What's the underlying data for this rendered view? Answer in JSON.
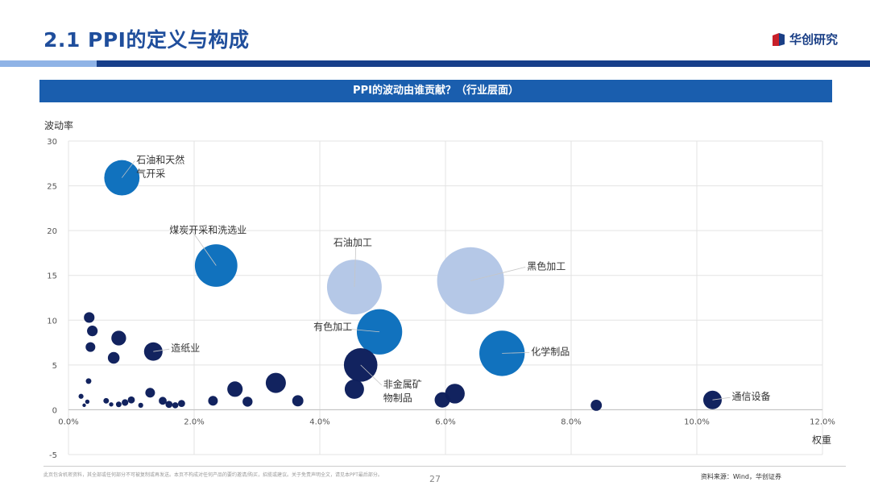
{
  "header": {
    "title": "2.1 PPI的定义与构成",
    "logo_text": "华创研究"
  },
  "banner": {
    "text": "PPI的波动由谁贡献？（行业层面）"
  },
  "chart_data": {
    "type": "scatter",
    "title": "",
    "xlabel": "权重",
    "ylabel": "波动率",
    "xlim": [
      0,
      12
    ],
    "ylim": [
      -5,
      30
    ],
    "x_ticks": [
      "0.0%",
      "2.0%",
      "4.0%",
      "6.0%",
      "8.0%",
      "10.0%",
      "12.0%"
    ],
    "y_ticks": [
      "-5",
      "0",
      "5",
      "10",
      "15",
      "20",
      "25",
      "30"
    ],
    "x_tick_values": [
      0,
      2,
      4,
      6,
      8,
      10,
      12
    ],
    "y_tick_values": [
      -5,
      0,
      5,
      10,
      15,
      20,
      25,
      30
    ],
    "grid": true,
    "colors": {
      "light": "#b4c7e7",
      "mid": "#0c6fbd",
      "dark": "#0d1f5c"
    },
    "points": [
      {
        "x": 0.85,
        "y": 25.9,
        "size": 2.0,
        "color": "mid",
        "label": "石油和天然\n气开采",
        "label_dx": 18,
        "label_dy": -18
      },
      {
        "x": 2.35,
        "y": 16.1,
        "size": 2.9,
        "color": "mid",
        "label": "煤炭开采和洗选业",
        "label_dx": -58,
        "label_dy": -40
      },
      {
        "x": 4.55,
        "y": 13.7,
        "size": 4.8,
        "color": "light",
        "label": "石油加工",
        "label_dx": -26,
        "label_dy": -51
      },
      {
        "x": 6.4,
        "y": 14.4,
        "size": 7.2,
        "color": "light",
        "label": "黑色加工",
        "label_dx": 70,
        "label_dy": -14
      },
      {
        "x": 4.95,
        "y": 8.7,
        "size": 3.3,
        "color": "mid",
        "label": "有色加工",
        "label_dx": -82,
        "label_dy": -2
      },
      {
        "x": 6.9,
        "y": 6.3,
        "size": 3.3,
        "color": "mid",
        "label": "化学制品",
        "label_dx": 36,
        "label_dy": 2
      },
      {
        "x": 4.65,
        "y": 5.0,
        "size": 1.8,
        "color": "dark",
        "label": "非金属矿\n物制品",
        "label_dx": 28,
        "label_dy": 28
      },
      {
        "x": 1.35,
        "y": 6.5,
        "size": 0.55,
        "color": "dark",
        "label": "造纸业",
        "label_dx": 22,
        "label_dy": 0
      },
      {
        "x": 10.25,
        "y": 1.1,
        "size": 0.55,
        "color": "dark",
        "label": "通信设备",
        "label_dx": 24,
        "label_dy": 0
      },
      {
        "x": 0.33,
        "y": 10.3,
        "size": 0.18,
        "color": "dark"
      },
      {
        "x": 0.38,
        "y": 8.8,
        "size": 0.18,
        "color": "dark"
      },
      {
        "x": 0.35,
        "y": 7.0,
        "size": 0.15,
        "color": "dark"
      },
      {
        "x": 0.8,
        "y": 8.0,
        "size": 0.35,
        "color": "dark"
      },
      {
        "x": 0.72,
        "y": 5.8,
        "size": 0.22,
        "color": "dark"
      },
      {
        "x": 0.32,
        "y": 3.2,
        "size": 0.05,
        "color": "dark"
      },
      {
        "x": 0.2,
        "y": 1.5,
        "size": 0.04,
        "color": "dark"
      },
      {
        "x": 0.3,
        "y": 0.9,
        "size": 0.03,
        "color": "dark"
      },
      {
        "x": 0.25,
        "y": 0.5,
        "size": 0.02,
        "color": "dark"
      },
      {
        "x": 0.6,
        "y": 1.0,
        "size": 0.05,
        "color": "dark"
      },
      {
        "x": 0.68,
        "y": 0.6,
        "size": 0.03,
        "color": "dark"
      },
      {
        "x": 0.8,
        "y": 0.6,
        "size": 0.05,
        "color": "dark"
      },
      {
        "x": 0.9,
        "y": 0.8,
        "size": 0.07,
        "color": "dark"
      },
      {
        "x": 1.0,
        "y": 1.1,
        "size": 0.08,
        "color": "dark"
      },
      {
        "x": 1.15,
        "y": 0.5,
        "size": 0.04,
        "color": "dark"
      },
      {
        "x": 1.3,
        "y": 1.9,
        "size": 0.15,
        "color": "dark"
      },
      {
        "x": 1.5,
        "y": 1.0,
        "size": 0.1,
        "color": "dark"
      },
      {
        "x": 1.6,
        "y": 0.6,
        "size": 0.08,
        "color": "dark"
      },
      {
        "x": 1.7,
        "y": 0.5,
        "size": 0.06,
        "color": "dark"
      },
      {
        "x": 1.8,
        "y": 0.7,
        "size": 0.08,
        "color": "dark"
      },
      {
        "x": 2.3,
        "y": 1.0,
        "size": 0.15,
        "color": "dark"
      },
      {
        "x": 2.65,
        "y": 2.3,
        "size": 0.38,
        "color": "dark"
      },
      {
        "x": 2.85,
        "y": 0.9,
        "size": 0.16,
        "color": "dark"
      },
      {
        "x": 3.3,
        "y": 3.0,
        "size": 0.65,
        "color": "dark"
      },
      {
        "x": 3.65,
        "y": 1.0,
        "size": 0.2,
        "color": "dark"
      },
      {
        "x": 4.55,
        "y": 2.3,
        "size": 0.6,
        "color": "dark"
      },
      {
        "x": 5.95,
        "y": 1.1,
        "size": 0.38,
        "color": "dark"
      },
      {
        "x": 6.15,
        "y": 1.8,
        "size": 0.62,
        "color": "dark"
      },
      {
        "x": 8.4,
        "y": 0.5,
        "size": 0.2,
        "color": "dark"
      }
    ]
  },
  "footer": {
    "disclaimer": "此页包含机密资料，其全部或任何部分不可被复制或再发送。本页不构成对任何产品的要约邀请/购买，招揽或建议。关于免责声明全文，请见本PPT最后部分。",
    "page": "27",
    "source": "资料来源：Wind，华创证券"
  }
}
